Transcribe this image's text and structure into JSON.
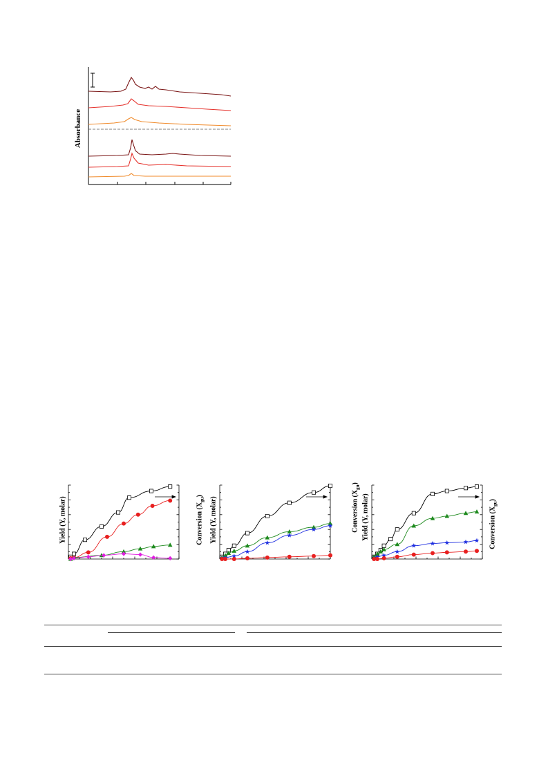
{
  "figure1": {
    "ylabel": "Absorbance",
    "colors": {
      "dark": "#7a1515",
      "red": "#e5302a",
      "orange": "#f08a2a",
      "dash": "#555555"
    }
  },
  "figure2": {
    "panels": [
      {
        "ylabel_left": "Yield (Y, molar)",
        "ylabel_right": "Conversion (X",
        "ylabel_right_sub": "gu",
        "ylabel_right_tail": ")",
        "chart_data": {
          "type": "line",
          "xlim": [
            0,
            10
          ],
          "ylim": [
            0,
            1
          ],
          "series": [
            {
              "marker": "open-square",
              "color": "#000000",
              "x": [
                0.2,
                0.5,
                1.5,
                3.0,
                4.5,
                5.5,
                7.5,
                9.2
              ],
              "y": [
                0.03,
                0.07,
                0.26,
                0.44,
                0.63,
                0.83,
                0.92,
                0.98
              ]
            },
            {
              "marker": "filled-circle",
              "color": "#e82020",
              "x": [
                0.2,
                0.5,
                1.8,
                3.5,
                5.0,
                6.3,
                7.6,
                9.2
              ],
              "y": [
                0.01,
                0.02,
                0.09,
                0.3,
                0.48,
                0.6,
                0.72,
                0.79
              ]
            },
            {
              "marker": "filled-triangle",
              "color": "#1e8a1e",
              "x": [
                0.2,
                0.5,
                3.0,
                5.0,
                6.5,
                7.7,
                9.2
              ],
              "y": [
                0.0,
                0.02,
                0.05,
                0.1,
                0.14,
                0.17,
                0.19
              ]
            },
            {
              "marker": "filled-diamond",
              "color": "#e020e0",
              "x": [
                0.2,
                0.5,
                1.8,
                3.2,
                5.0,
                6.5,
                7.7,
                9.2
              ],
              "y": [
                0.0,
                0.01,
                0.03,
                0.05,
                0.07,
                0.06,
                0.02,
                0.01
              ]
            }
          ]
        }
      },
      {
        "ylabel_left": "Yield (Y, molar)",
        "ylabel_right": "Conversion (X",
        "ylabel_right_sub": "gu",
        "ylabel_right_tail": ")",
        "chart_data": {
          "type": "line",
          "xlim": [
            0,
            10
          ],
          "ylim": [
            0,
            1
          ],
          "series": [
            {
              "marker": "open-square",
              "color": "#000000",
              "x": [
                0.2,
                0.5,
                0.8,
                1.3,
                2.5,
                4.3,
                6.3,
                8.5,
                10.0
              ],
              "y": [
                0.03,
                0.07,
                0.12,
                0.18,
                0.35,
                0.58,
                0.76,
                0.9,
                0.99
              ]
            },
            {
              "marker": "filled-triangle",
              "color": "#1e8a1e",
              "x": [
                0.2,
                0.5,
                0.8,
                1.3,
                2.5,
                4.3,
                6.3,
                8.5,
                10.0
              ],
              "y": [
                0.02,
                0.05,
                0.08,
                0.11,
                0.18,
                0.29,
                0.37,
                0.43,
                0.48
              ]
            },
            {
              "marker": "filled-star",
              "color": "#2030e0",
              "x": [
                0.2,
                0.5,
                1.3,
                2.5,
                4.3,
                6.3,
                8.5,
                10.0
              ],
              "y": [
                0.01,
                0.02,
                0.04,
                0.1,
                0.22,
                0.32,
                0.4,
                0.45
              ]
            },
            {
              "marker": "filled-circle",
              "color": "#e82020",
              "x": [
                0.2,
                0.5,
                1.3,
                2.5,
                4.3,
                6.3,
                8.5,
                10.0
              ],
              "y": [
                0.0,
                0.0,
                0.0,
                0.01,
                0.02,
                0.03,
                0.04,
                0.05
              ]
            }
          ]
        }
      },
      {
        "ylabel_left": "Yield (Y, molar)",
        "ylabel_right": "Conversion (X",
        "ylabel_right_sub": "gu",
        "ylabel_right_tail": ")",
        "chart_data": {
          "type": "line",
          "xlim": [
            0,
            10
          ],
          "ylim": [
            0,
            1
          ],
          "series": [
            {
              "marker": "open-square",
              "color": "#000000",
              "x": [
                0.2,
                0.5,
                0.8,
                1.1,
                1.7,
                2.3,
                3.8,
                5.5,
                6.8,
                8.5,
                9.5
              ],
              "y": [
                0.03,
                0.07,
                0.12,
                0.18,
                0.27,
                0.4,
                0.62,
                0.88,
                0.92,
                0.96,
                0.98
              ]
            },
            {
              "marker": "filled-triangle",
              "color": "#1e8a1e",
              "x": [
                0.2,
                0.5,
                0.8,
                1.1,
                2.3,
                3.8,
                5.5,
                6.8,
                8.5,
                9.5
              ],
              "y": [
                0.03,
                0.07,
                0.1,
                0.13,
                0.2,
                0.45,
                0.55,
                0.58,
                0.62,
                0.64
              ]
            },
            {
              "marker": "filled-star",
              "color": "#2030e0",
              "x": [
                0.2,
                0.5,
                1.1,
                2.3,
                3.8,
                5.5,
                6.8,
                8.5,
                9.5
              ],
              "y": [
                0.01,
                0.03,
                0.05,
                0.1,
                0.18,
                0.21,
                0.22,
                0.23,
                0.25
              ]
            },
            {
              "marker": "filled-circle",
              "color": "#e82020",
              "x": [
                0.2,
                0.5,
                1.1,
                2.3,
                3.8,
                5.5,
                6.8,
                8.5,
                9.5
              ],
              "y": [
                0.0,
                0.0,
                0.01,
                0.03,
                0.06,
                0.08,
                0.09,
                0.1,
                0.11
              ]
            }
          ]
        }
      }
    ]
  },
  "table": {}
}
